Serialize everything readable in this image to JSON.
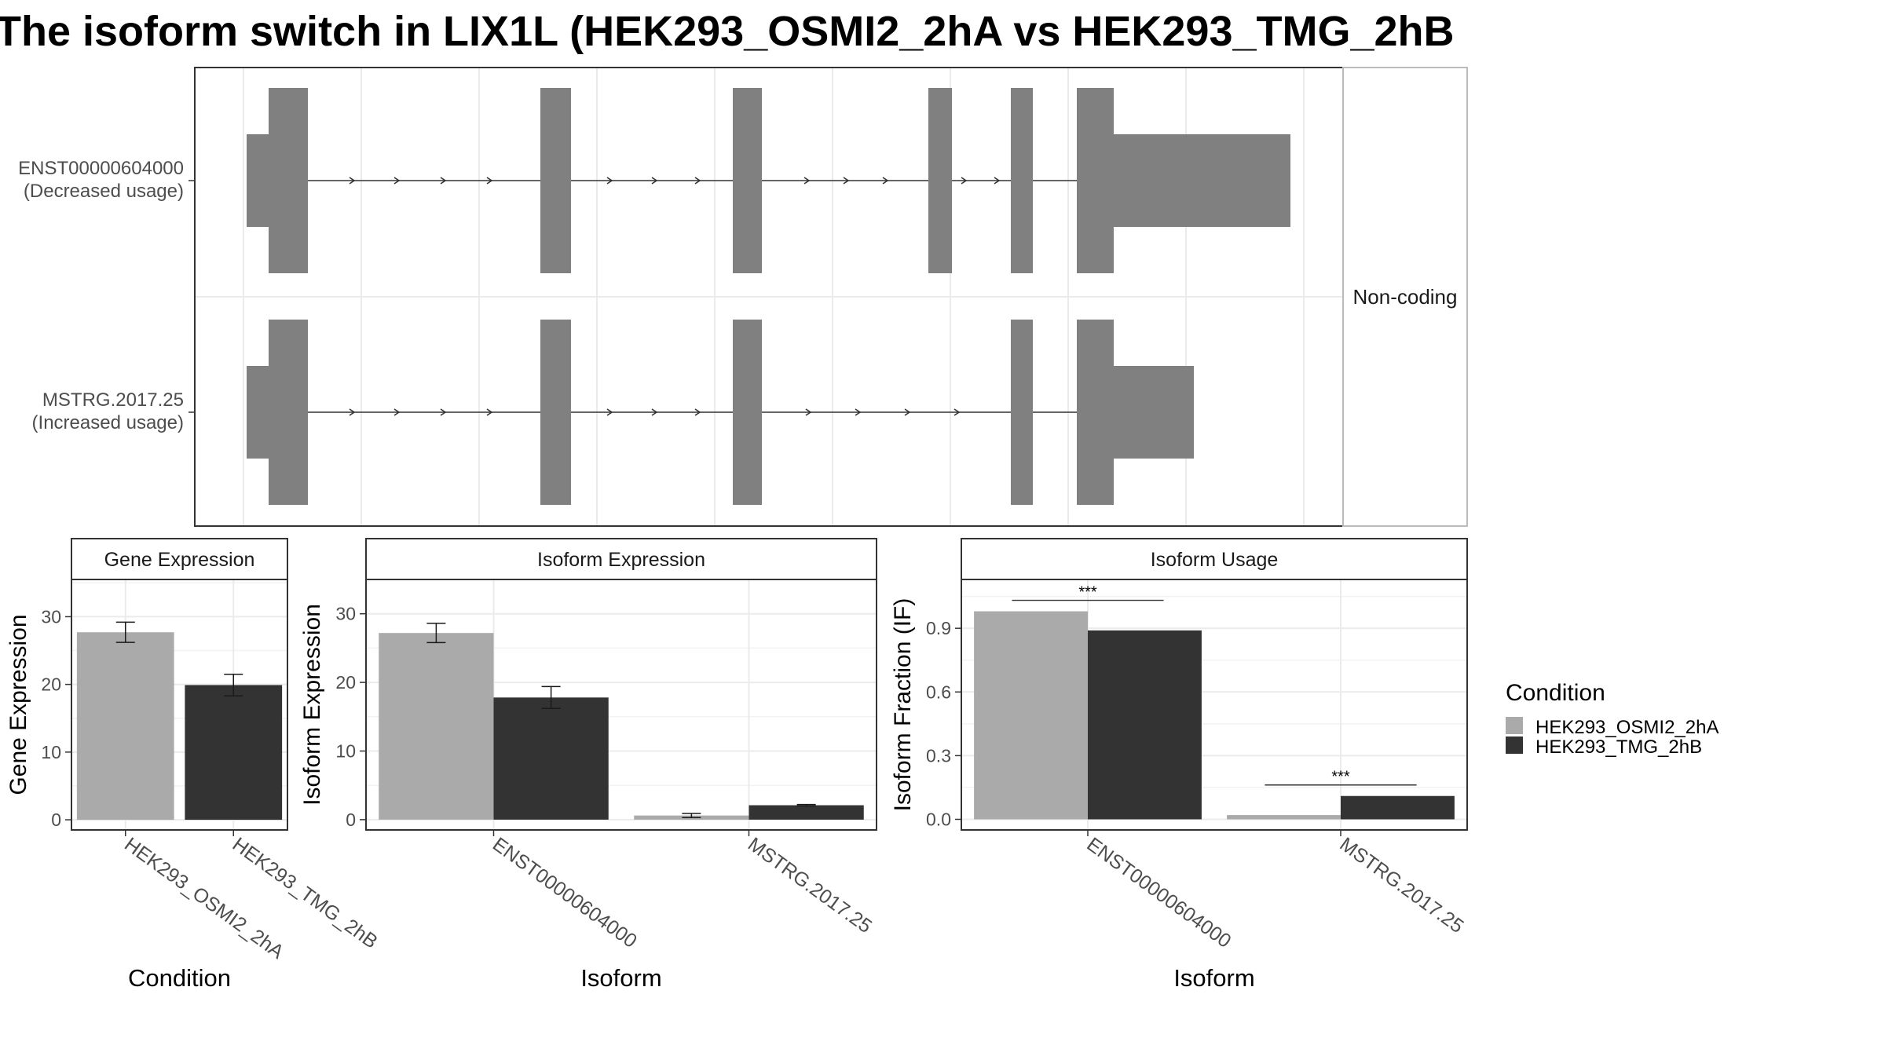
{
  "title": "The isoform switch in LIX1L (HEK293_OSMI2_2hA vs HEK293_TMG_2hB",
  "colors": {
    "exon": "#808080",
    "cond_a": "#aaaaaa",
    "cond_b": "#333333",
    "grid": "#ebebeb",
    "panel_border": "#333333",
    "strip_border": "#333333"
  },
  "structure": {
    "strip_label": "Non-coding",
    "transcripts": [
      {
        "id": "ENST00000604000",
        "usage": "(Decreased usage)"
      },
      {
        "id": "MSTRG.2017.25",
        "usage": "(Increased usage)"
      }
    ]
  },
  "legend": {
    "title": "Condition",
    "items": [
      "HEK293_OSMI2_2hA",
      "HEK293_TMG_2hB"
    ]
  },
  "chart_data": [
    {
      "type": "bar",
      "title": "Gene Expression",
      "xlabel": "Condition",
      "ylabel": "Gene Expression",
      "ylim": [
        -1.5,
        35.5
      ],
      "yticks": [
        0,
        10,
        20,
        30
      ],
      "categories": [
        "HEK293_OSMI2_2hA",
        "HEK293_TMG_2hB"
      ],
      "series": [
        {
          "name": "HEK293_OSMI2_2hA",
          "values": [
            27.7,
            null
          ],
          "error": [
            1.5,
            null
          ]
        },
        {
          "name": "HEK293_TMG_2hB",
          "values": [
            null,
            19.9
          ],
          "error": [
            null,
            1.6
          ]
        }
      ],
      "grid": true,
      "legend": "right"
    },
    {
      "type": "bar",
      "title": "Isoform Expression",
      "xlabel": "Isoform",
      "ylabel": "Isoform Expression",
      "ylim": [
        -1.5,
        35.0
      ],
      "yticks": [
        0,
        10,
        20,
        30
      ],
      "categories": [
        "ENST00000604000",
        "MSTRG.2017.25"
      ],
      "series": [
        {
          "name": "HEK293_OSMI2_2hA",
          "values": [
            27.2,
            0.6
          ],
          "error": [
            1.4,
            0.3
          ]
        },
        {
          "name": "HEK293_TMG_2hB",
          "values": [
            17.8,
            2.1
          ],
          "error": [
            1.6,
            0.1
          ]
        }
      ],
      "grid": true,
      "legend": "right"
    },
    {
      "type": "bar",
      "title": "Isoform Usage",
      "xlabel": "Isoform",
      "ylabel": "Isoform Fraction (IF)",
      "ylim": [
        -0.05,
        1.13
      ],
      "yticks": [
        0.0,
        0.3,
        0.6,
        0.9
      ],
      "ytick_labels": [
        "0.0",
        "0.3",
        "0.6",
        "0.9"
      ],
      "categories": [
        "ENST00000604000",
        "MSTRG.2017.25"
      ],
      "series": [
        {
          "name": "HEK293_OSMI2_2hA",
          "values": [
            0.98,
            0.02
          ]
        },
        {
          "name": "HEK293_TMG_2hB",
          "values": [
            0.89,
            0.11
          ]
        }
      ],
      "significance": [
        "***",
        "***"
      ],
      "grid": true,
      "legend": "right"
    }
  ]
}
